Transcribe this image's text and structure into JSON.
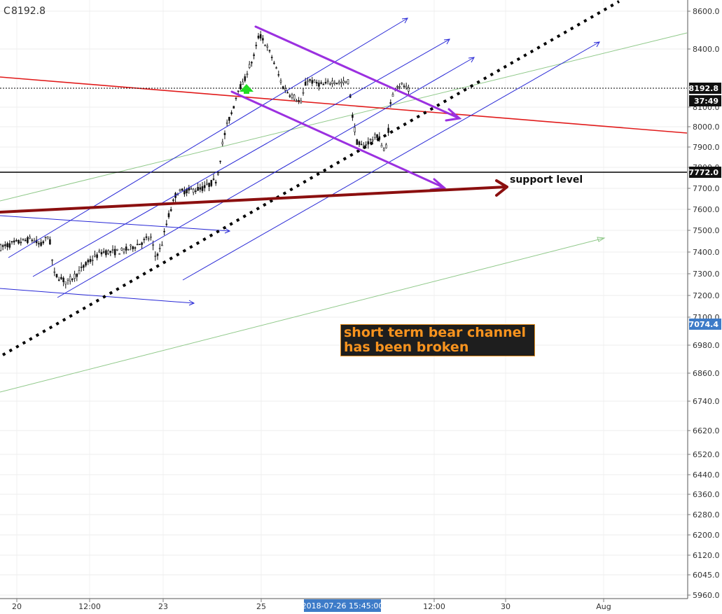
{
  "header": {
    "symbol_prefix": "C",
    "last_value": "8192.8"
  },
  "colors": {
    "candles": "#111111",
    "channel": "#2727d6",
    "trend_red": "#e11b1b",
    "support_dark_red": "#8b0f0f",
    "bear_channel": "#9b30e0",
    "green_trend": "#90c98a",
    "green_arrow": "#22dd22",
    "note_background": "#1e1e1e",
    "note_text": "#f7931e"
  },
  "chart_data": {
    "type": "candlestick",
    "y_axis": {
      "side": "right",
      "scale": "log",
      "range": [
        5960,
        8700
      ],
      "tick_labels": [
        "8600.0",
        "8400.0",
        "8100.0",
        "8000.0",
        "7900.0",
        "7800.0",
        "7700.0",
        "7600.0",
        "7500.0",
        "7400.0",
        "7300.0",
        "7200.0",
        "7100.0",
        "6980.0",
        "6860.0",
        "6740.0",
        "6620.0",
        "6520.0",
        "6440.0",
        "6360.0",
        "6280.0",
        "6200.0",
        "6120.0",
        "6045.0",
        "5960.0"
      ]
    },
    "x_axis": {
      "tick_labels": [
        {
          "label": "20"
        },
        {
          "label": "12:00"
        },
        {
          "label": "23"
        },
        {
          "label": "25"
        },
        {
          "label": "12:00"
        },
        {
          "label": "30"
        },
        {
          "label": "Aug"
        }
      ],
      "cursor_label": "2018-07-26 15:45:00"
    },
    "price_labels": [
      {
        "value": 8192.8,
        "text": "8192.8",
        "style": "dark"
      },
      {
        "text": "37:49",
        "style": "dark",
        "note": "countdown"
      },
      {
        "value": 7772.0,
        "text": "7772.0",
        "style": "dark"
      },
      {
        "value": 7074.4,
        "text": "7074.4",
        "style": "blue"
      }
    ],
    "horizontal_lines": [
      {
        "value": 8192.8,
        "style": "dotted"
      },
      {
        "value": 7772.0,
        "style": "solid-black",
        "label": "support level"
      }
    ],
    "annotations": [
      {
        "text": "support level"
      },
      {
        "text": "short term bear channel has been broken"
      }
    ],
    "grid": true,
    "legend": "none"
  },
  "note": {
    "line1": "short term bear channel",
    "line2": "has been broken"
  },
  "support_label": "support level"
}
